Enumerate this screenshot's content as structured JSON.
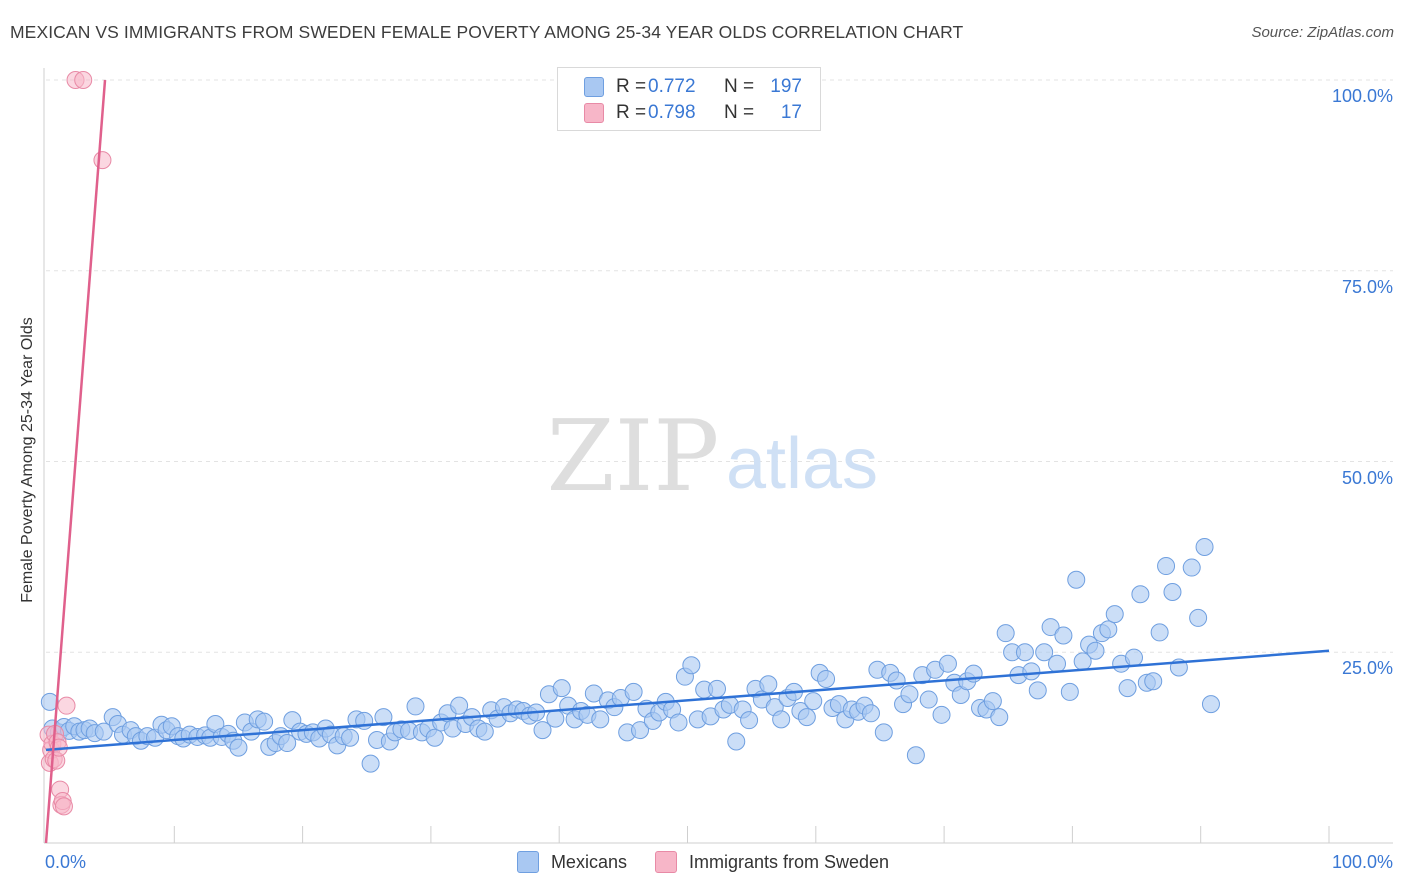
{
  "title": "MEXICAN VS IMMIGRANTS FROM SWEDEN FEMALE POVERTY AMONG 25-34 YEAR OLDS CORRELATION CHART",
  "source": "Source: ZipAtlas.com",
  "watermark": {
    "zip": "ZIP",
    "atlas": "atlas"
  },
  "colors": {
    "blue_fill": "#a9c8f2",
    "blue_stroke": "#6f9fe0",
    "blue_line": "#2f72d6",
    "pink_fill": "#f7b6c8",
    "pink_stroke": "#e88aa6",
    "pink_line": "#e0608c",
    "axis_text": "#3a78d4",
    "grid": "#e3e3e3"
  },
  "legend": {
    "rows": [
      {
        "r_label": "R =",
        "r_value": "0.772",
        "n_label": "N =",
        "n_value": "197",
        "color": "blue"
      },
      {
        "r_label": "R =",
        "r_value": "0.798",
        "n_label": "N =",
        "n_value": "17",
        "color": "pink"
      }
    ]
  },
  "bottom_legend": [
    {
      "label": "Mexicans",
      "color": "blue"
    },
    {
      "label": "Immigrants from Sweden",
      "color": "pink"
    }
  ],
  "chart_data": {
    "type": "scatter",
    "title": "MEXICAN VS IMMIGRANTS FROM SWEDEN FEMALE POVERTY AMONG 25-34 YEAR OLDS CORRELATION CHART",
    "xlabel": "",
    "ylabel": "Female Poverty Among 25-34 Year Olds",
    "xlim": [
      0,
      100
    ],
    "ylim": [
      0,
      100
    ],
    "x_tick_labels": [
      {
        "value": 0,
        "label": "0.0%"
      },
      {
        "value": 100,
        "label": "100.0%"
      }
    ],
    "y_tick_labels": [
      {
        "value": 25,
        "label": "25.0%"
      },
      {
        "value": 50,
        "label": "50.0%"
      },
      {
        "value": 75,
        "label": "75.0%"
      },
      {
        "value": 100,
        "label": "100.0%"
      }
    ],
    "series": [
      {
        "name": "Mexicans",
        "color": "blue",
        "R": 0.772,
        "N": 197,
        "trend": {
          "x": [
            0,
            100
          ],
          "y": [
            12.2,
            25.2
          ]
        },
        "points": [
          [
            0.3,
            18.5
          ],
          [
            0.5,
            15.0
          ],
          [
            1.0,
            14.5
          ],
          [
            1.4,
            15.2
          ],
          [
            1.8,
            14.7
          ],
          [
            2.2,
            15.3
          ],
          [
            2.6,
            14.6
          ],
          [
            3.0,
            14.8
          ],
          [
            3.4,
            15.0
          ],
          [
            3.8,
            14.4
          ],
          [
            4.5,
            14.6
          ],
          [
            5.2,
            16.5
          ],
          [
            5.6,
            15.6
          ],
          [
            6.0,
            14.2
          ],
          [
            6.6,
            14.8
          ],
          [
            7.0,
            14.0
          ],
          [
            7.4,
            13.4
          ],
          [
            7.9,
            14.0
          ],
          [
            8.5,
            13.8
          ],
          [
            9.0,
            15.5
          ],
          [
            9.4,
            14.8
          ],
          [
            9.8,
            15.3
          ],
          [
            10.3,
            14.0
          ],
          [
            10.7,
            13.7
          ],
          [
            11.2,
            14.2
          ],
          [
            11.8,
            13.9
          ],
          [
            12.4,
            14.1
          ],
          [
            12.8,
            13.8
          ],
          [
            13.2,
            15.6
          ],
          [
            13.7,
            13.9
          ],
          [
            14.2,
            14.3
          ],
          [
            14.6,
            13.4
          ],
          [
            15.0,
            12.5
          ],
          [
            15.5,
            15.8
          ],
          [
            16.0,
            14.6
          ],
          [
            16.5,
            16.2
          ],
          [
            17.0,
            15.9
          ],
          [
            17.4,
            12.6
          ],
          [
            17.9,
            13.1
          ],
          [
            18.3,
            14.0
          ],
          [
            18.8,
            13.1
          ],
          [
            19.2,
            16.1
          ],
          [
            19.8,
            14.6
          ],
          [
            20.3,
            14.3
          ],
          [
            20.8,
            14.5
          ],
          [
            21.3,
            13.7
          ],
          [
            21.8,
            15.0
          ],
          [
            22.2,
            14.2
          ],
          [
            22.7,
            12.8
          ],
          [
            23.2,
            14.0
          ],
          [
            23.7,
            13.8
          ],
          [
            24.2,
            16.2
          ],
          [
            24.8,
            16.0
          ],
          [
            25.3,
            10.4
          ],
          [
            25.8,
            13.5
          ],
          [
            26.3,
            16.5
          ],
          [
            26.8,
            13.3
          ],
          [
            27.2,
            14.5
          ],
          [
            27.7,
            14.9
          ],
          [
            28.3,
            14.7
          ],
          [
            28.8,
            17.9
          ],
          [
            29.3,
            14.5
          ],
          [
            29.8,
            15.0
          ],
          [
            30.3,
            13.8
          ],
          [
            30.8,
            15.8
          ],
          [
            31.3,
            17.0
          ],
          [
            31.7,
            15.0
          ],
          [
            32.2,
            18.0
          ],
          [
            32.7,
            15.6
          ],
          [
            33.2,
            16.5
          ],
          [
            33.7,
            15.0
          ],
          [
            34.2,
            14.6
          ],
          [
            34.7,
            17.4
          ],
          [
            35.2,
            16.3
          ],
          [
            35.7,
            17.8
          ],
          [
            36.2,
            17.0
          ],
          [
            36.7,
            17.5
          ],
          [
            37.2,
            17.3
          ],
          [
            37.7,
            16.7
          ],
          [
            38.2,
            17.1
          ],
          [
            38.7,
            14.8
          ],
          [
            39.2,
            19.5
          ],
          [
            39.7,
            16.3
          ],
          [
            40.2,
            20.3
          ],
          [
            40.7,
            18.0
          ],
          [
            41.2,
            16.2
          ],
          [
            41.7,
            17.3
          ],
          [
            42.2,
            16.8
          ],
          [
            42.7,
            19.6
          ],
          [
            43.2,
            16.2
          ],
          [
            43.8,
            18.7
          ],
          [
            44.3,
            17.8
          ],
          [
            44.8,
            19.0
          ],
          [
            45.3,
            14.5
          ],
          [
            45.8,
            19.8
          ],
          [
            46.3,
            14.8
          ],
          [
            46.8,
            17.6
          ],
          [
            47.3,
            16.0
          ],
          [
            47.8,
            17.1
          ],
          [
            48.3,
            18.5
          ],
          [
            48.8,
            17.5
          ],
          [
            49.3,
            15.8
          ],
          [
            49.8,
            21.8
          ],
          [
            50.3,
            23.3
          ],
          [
            50.8,
            16.2
          ],
          [
            51.3,
            20.1
          ],
          [
            51.8,
            16.6
          ],
          [
            52.3,
            20.2
          ],
          [
            52.8,
            17.5
          ],
          [
            53.3,
            18.1
          ],
          [
            53.8,
            13.3
          ],
          [
            54.3,
            17.5
          ],
          [
            54.8,
            16.1
          ],
          [
            55.3,
            20.2
          ],
          [
            55.8,
            18.8
          ],
          [
            56.3,
            20.8
          ],
          [
            56.8,
            17.8
          ],
          [
            57.3,
            16.2
          ],
          [
            57.8,
            19.0
          ],
          [
            58.3,
            19.8
          ],
          [
            58.8,
            17.3
          ],
          [
            59.3,
            16.5
          ],
          [
            59.8,
            18.6
          ],
          [
            60.3,
            22.3
          ],
          [
            60.8,
            21.5
          ],
          [
            61.3,
            17.7
          ],
          [
            61.8,
            18.2
          ],
          [
            62.3,
            16.2
          ],
          [
            62.8,
            17.5
          ],
          [
            63.3,
            17.2
          ],
          [
            63.8,
            18.0
          ],
          [
            64.3,
            17.0
          ],
          [
            64.8,
            22.7
          ],
          [
            65.3,
            14.5
          ],
          [
            65.8,
            22.3
          ],
          [
            66.3,
            21.3
          ],
          [
            66.8,
            18.2
          ],
          [
            67.3,
            19.5
          ],
          [
            67.8,
            11.5
          ],
          [
            68.3,
            22.0
          ],
          [
            68.8,
            18.8
          ],
          [
            69.3,
            22.7
          ],
          [
            69.8,
            16.8
          ],
          [
            70.3,
            23.5
          ],
          [
            70.8,
            21.0
          ],
          [
            71.3,
            19.4
          ],
          [
            71.8,
            21.2
          ],
          [
            72.3,
            22.2
          ],
          [
            72.8,
            17.7
          ],
          [
            73.3,
            17.5
          ],
          [
            73.8,
            18.6
          ],
          [
            74.3,
            16.5
          ],
          [
            74.8,
            27.5
          ],
          [
            75.3,
            25.0
          ],
          [
            75.8,
            22.0
          ],
          [
            76.3,
            25.0
          ],
          [
            76.8,
            22.5
          ],
          [
            77.3,
            20.0
          ],
          [
            77.8,
            25.0
          ],
          [
            78.3,
            28.3
          ],
          [
            78.8,
            23.5
          ],
          [
            79.3,
            27.2
          ],
          [
            79.8,
            19.8
          ],
          [
            80.3,
            34.5
          ],
          [
            80.8,
            23.8
          ],
          [
            81.3,
            26.0
          ],
          [
            81.8,
            25.2
          ],
          [
            82.3,
            27.5
          ],
          [
            82.8,
            28.0
          ],
          [
            83.3,
            30.0
          ],
          [
            83.8,
            23.5
          ],
          [
            84.3,
            20.3
          ],
          [
            84.8,
            24.3
          ],
          [
            85.3,
            32.6
          ],
          [
            85.8,
            21.0
          ],
          [
            86.3,
            21.2
          ],
          [
            86.8,
            27.6
          ],
          [
            87.3,
            36.3
          ],
          [
            87.8,
            32.9
          ],
          [
            88.3,
            23.0
          ],
          [
            89.3,
            36.1
          ],
          [
            89.8,
            29.5
          ],
          [
            90.3,
            38.8
          ],
          [
            90.8,
            18.2
          ]
        ]
      },
      {
        "name": "Immigrants from Sweden",
        "color": "pink",
        "R": 0.798,
        "N": 17,
        "trend": {
          "x": [
            0,
            4.6
          ],
          "y": [
            0,
            100
          ]
        },
        "points": [
          [
            0.2,
            14.2
          ],
          [
            0.3,
            10.5
          ],
          [
            0.4,
            12.2
          ],
          [
            0.5,
            13.0
          ],
          [
            0.6,
            11.0
          ],
          [
            0.7,
            14.3
          ],
          [
            0.8,
            10.8
          ],
          [
            0.9,
            13.2
          ],
          [
            1.0,
            12.5
          ],
          [
            1.1,
            7.0
          ],
          [
            1.2,
            5.0
          ],
          [
            1.3,
            5.5
          ],
          [
            1.4,
            4.8
          ],
          [
            1.6,
            18.0
          ],
          [
            2.3,
            100.0
          ],
          [
            2.9,
            100.0
          ],
          [
            4.4,
            89.5
          ]
        ]
      }
    ]
  }
}
